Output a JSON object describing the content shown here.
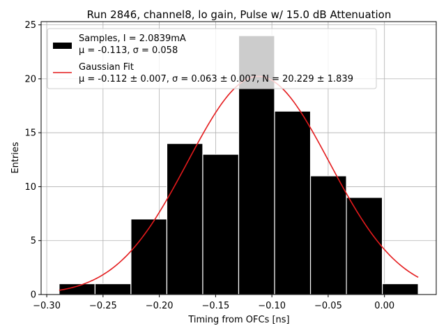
{
  "chart_data": {
    "type": "bar",
    "title": "Run 2846, channel8, lo gain, Pulse w/ 15.0 dB Attenuation",
    "xlabel": "Timing from OFCs [ns]",
    "ylabel": "Entries",
    "xlim": [
      -0.305,
      0.046
    ],
    "ylim": [
      0,
      25.3
    ],
    "xticks": [
      -0.3,
      -0.25,
      -0.2,
      -0.15,
      -0.1,
      -0.05,
      0.0
    ],
    "xtick_labels": [
      "−0.30",
      "−0.25",
      "−0.20",
      "−0.15",
      "−0.10",
      "−0.05",
      "0.00"
    ],
    "yticks": [
      0,
      5,
      10,
      15,
      20,
      25
    ],
    "ytick_labels": [
      "0",
      "5",
      "10",
      "15",
      "20",
      "25"
    ],
    "grid": true,
    "legend_position": "top-left",
    "histogram": {
      "name": "Samples, I = 2.0839mA",
      "stats": "μ = -0.113, σ = 0.058",
      "color": "#000000",
      "bin_edges": [
        -0.289,
        -0.2571,
        -0.2252,
        -0.1933,
        -0.1614,
        -0.1295,
        -0.0976,
        -0.0657,
        -0.0338,
        -0.0019,
        0.03
      ],
      "counts": [
        1,
        1,
        7,
        14,
        13,
        24,
        17,
        11,
        9,
        1
      ]
    },
    "fit": {
      "name": "Gaussian Fit",
      "stats": "μ = -0.112 ± 0.007, σ = 0.063 ± 0.007, N = 20.229 ± 1.839",
      "color": "#e41a1c",
      "mu": -0.112,
      "sigma": 0.063,
      "amplitude": 20.229,
      "x_range": [
        -0.289,
        0.03
      ]
    }
  }
}
